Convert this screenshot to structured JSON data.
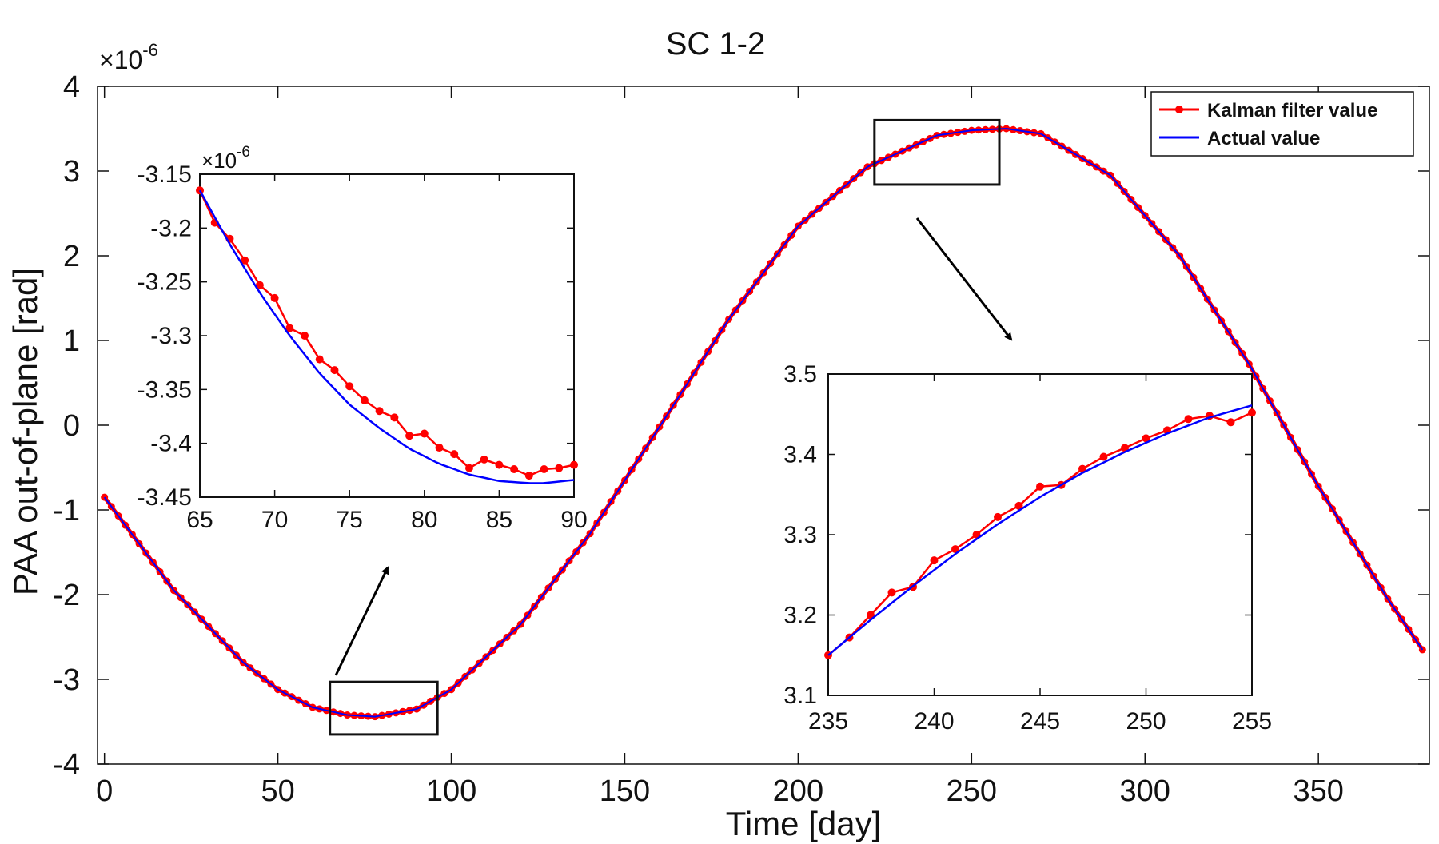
{
  "chart_data": [
    {
      "id": "main",
      "type": "line",
      "title": "SC 1-2",
      "xlabel": "Time [day]",
      "ylabel": "PAA  out-of-plane [rad]",
      "exponent_label": "×10",
      "exponent_power": "-6",
      "xlim": [
        -2,
        382
      ],
      "ylim": [
        -4,
        4
      ],
      "xticks": [
        0,
        50,
        100,
        150,
        200,
        250,
        300,
        350
      ],
      "yticks": [
        4,
        3,
        2,
        1,
        0,
        -1,
        -2,
        -3,
        -4
      ],
      "legend": {
        "placement": "top-right",
        "entries": [
          {
            "name": "Kalman filter value",
            "color": "#ff0000",
            "marker": "circle"
          },
          {
            "name": "Actual value",
            "color": "#0000ff",
            "marker": "none"
          }
        ]
      },
      "series": [
        {
          "name": "Actual value",
          "color": "#0000ff",
          "x": [
            0,
            20,
            40,
            50,
            60,
            70,
            78,
            90,
            100,
            120,
            140,
            160,
            180,
            200,
            220,
            240,
            250,
            260,
            270,
            290,
            310,
            330,
            350,
            370,
            380
          ],
          "values": [
            -0.85,
            -1.95,
            -2.8,
            -3.12,
            -3.33,
            -3.42,
            -3.44,
            -3.35,
            -3.12,
            -2.35,
            -1.28,
            -0.02,
            1.25,
            2.35,
            3.05,
            3.42,
            3.48,
            3.5,
            3.44,
            2.95,
            2.0,
            0.72,
            -0.72,
            -2.05,
            -2.65
          ]
        },
        {
          "name": "Kalman filter value",
          "color": "#ff0000",
          "x": [
            0,
            20,
            40,
            50,
            60,
            70,
            78,
            90,
            100,
            120,
            140,
            160,
            180,
            200,
            220,
            240,
            250,
            260,
            270,
            290,
            310,
            330,
            350,
            370,
            380
          ],
          "values": [
            -0.85,
            -1.95,
            -2.8,
            -3.12,
            -3.33,
            -3.42,
            -3.44,
            -3.35,
            -3.12,
            -2.35,
            -1.28,
            -0.02,
            1.25,
            2.35,
            3.05,
            3.42,
            3.48,
            3.5,
            3.44,
            2.95,
            2.0,
            0.72,
            -0.72,
            -2.05,
            -2.65
          ]
        }
      ],
      "zoom_boxes": [
        {
          "xrange": [
            65,
            96
          ],
          "yrange": [
            -3.65,
            -3.03
          ]
        },
        {
          "xrange": [
            222,
            258
          ],
          "yrange": [
            2.84,
            3.6
          ]
        }
      ]
    },
    {
      "id": "inset-left",
      "type": "line",
      "exponent_label": "×10",
      "exponent_power": "-6",
      "xlim": [
        65,
        90
      ],
      "ylim": [
        -3.45,
        -3.15
      ],
      "xticks": [
        65,
        70,
        75,
        80,
        85,
        90
      ],
      "yticks": [
        -3.15,
        -3.2,
        -3.25,
        -3.3,
        -3.35,
        -3.4,
        -3.45
      ],
      "series": [
        {
          "name": "Actual value",
          "color": "#0000ff",
          "x": [
            65,
            67,
            69,
            71,
            73,
            75,
            77,
            79,
            81,
            83,
            85,
            87,
            88,
            90
          ],
          "values": [
            -3.165,
            -3.215,
            -3.26,
            -3.3,
            -3.335,
            -3.364,
            -3.386,
            -3.405,
            -3.419,
            -3.429,
            -3.435,
            -3.437,
            -3.437,
            -3.434
          ]
        },
        {
          "name": "Kalman filter value",
          "color": "#ff0000",
          "x": [
            65,
            66,
            67,
            68,
            69,
            70,
            71,
            72,
            73,
            74,
            75,
            76,
            77,
            78,
            79,
            80,
            81,
            82,
            83,
            84,
            85,
            86,
            87,
            88,
            89,
            90
          ],
          "values": [
            -3.165,
            -3.195,
            -3.21,
            -3.23,
            -3.253,
            -3.265,
            -3.293,
            -3.3,
            -3.322,
            -3.332,
            -3.347,
            -3.36,
            -3.37,
            -3.376,
            -3.393,
            -3.391,
            -3.404,
            -3.41,
            -3.423,
            -3.415,
            -3.42,
            -3.424,
            -3.43,
            -3.424,
            -3.423,
            -3.42
          ]
        }
      ]
    },
    {
      "id": "inset-right",
      "type": "line",
      "xlim": [
        235,
        255
      ],
      "ylim": [
        3.1,
        3.5
      ],
      "xticks": [
        235,
        240,
        245,
        250,
        255
      ],
      "yticks": [
        3.5,
        3.4,
        3.3,
        3.2,
        3.1
      ],
      "series": [
        {
          "name": "Actual value",
          "color": "#0000ff",
          "x": [
            235,
            237,
            239,
            241,
            243,
            245,
            247,
            249,
            251,
            253,
            255
          ],
          "values": [
            3.15,
            3.194,
            3.236,
            3.276,
            3.313,
            3.347,
            3.377,
            3.403,
            3.426,
            3.446,
            3.461
          ]
        },
        {
          "name": "Kalman filter value",
          "color": "#ff0000",
          "x": [
            235,
            236,
            237,
            238,
            239,
            240,
            241,
            242,
            243,
            244,
            245,
            246,
            247,
            248,
            249,
            250,
            251,
            252,
            253,
            254,
            255
          ],
          "values": [
            3.15,
            3.172,
            3.2,
            3.228,
            3.235,
            3.268,
            3.282,
            3.3,
            3.322,
            3.336,
            3.36,
            3.362,
            3.382,
            3.397,
            3.408,
            3.42,
            3.43,
            3.444,
            3.448,
            3.44,
            3.452
          ]
        }
      ]
    }
  ]
}
